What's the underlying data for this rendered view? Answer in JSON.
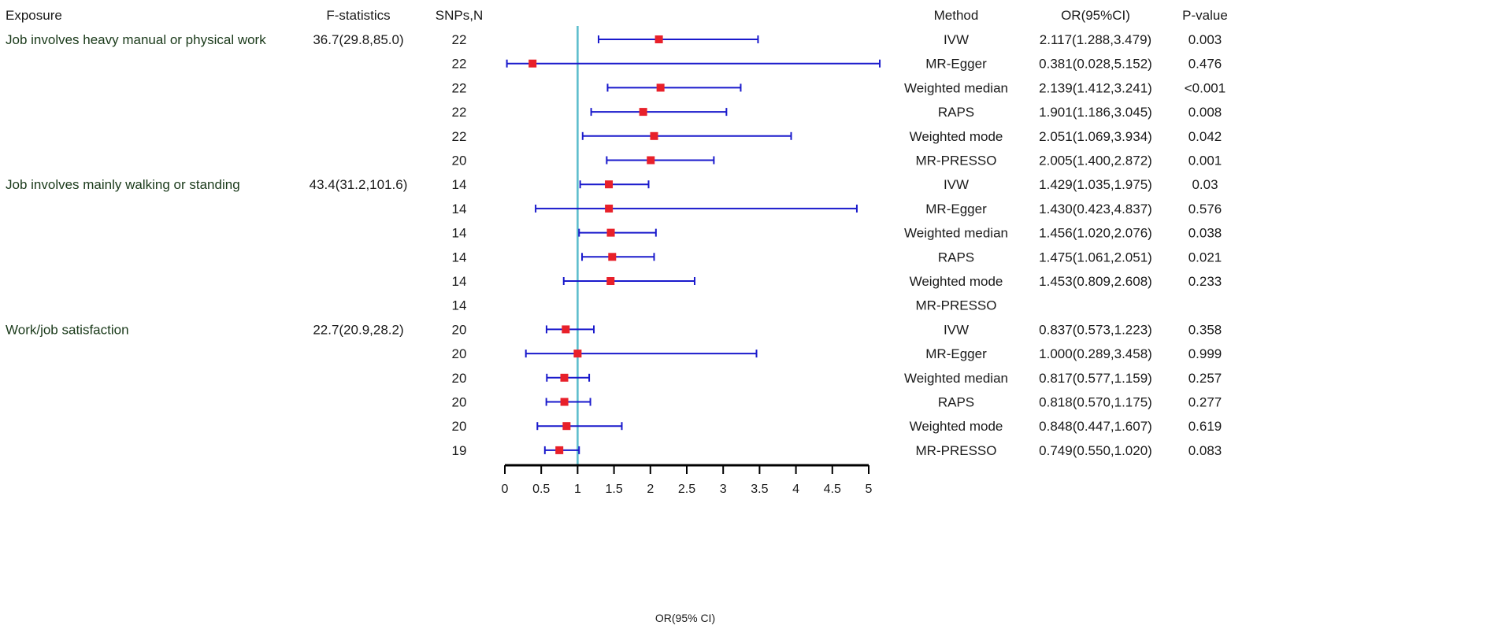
{
  "chart_data": {
    "type": "forest",
    "headers": {
      "exposure": "Exposure",
      "fstat": "F-statistics",
      "snps": "SNPs,N",
      "method": "Method",
      "or": "OR(95%CI)",
      "p": "P-value"
    },
    "xlabel": "OR(95% CI)",
    "xlim": [
      0,
      5
    ],
    "x_ticks": [
      0,
      0.5,
      1,
      1.5,
      2,
      2.5,
      3,
      3.5,
      4,
      4.5,
      5
    ],
    "x_tick_labels": [
      "0",
      "0.5",
      "1",
      "1.5",
      "2",
      "2.5",
      "3",
      "3.5",
      "4",
      "4.5",
      "5"
    ],
    "reference_line": 1,
    "colors": {
      "ci": "#1a1acc",
      "point": "#e8202a",
      "reference": "#5bbccc",
      "axis": "#000000"
    },
    "rows": [
      {
        "exposure": "Job involves heavy manual or physical work",
        "fstat": "36.7(29.8,85.0)",
        "snps": "22",
        "method": "IVW",
        "or": 2.117,
        "lo": 1.288,
        "hi": 3.479,
        "or_text": "2.117(1.288,3.479)",
        "p": "0.003"
      },
      {
        "exposure": "",
        "fstat": "",
        "snps": "22",
        "method": "MR-Egger",
        "or": 0.381,
        "lo": 0.028,
        "hi": 5.152,
        "or_text": "0.381(0.028,5.152)",
        "p": "0.476"
      },
      {
        "exposure": "",
        "fstat": "",
        "snps": "22",
        "method": "Weighted median",
        "or": 2.139,
        "lo": 1.412,
        "hi": 3.241,
        "or_text": "2.139(1.412,3.241)",
        "p": "<0.001"
      },
      {
        "exposure": "",
        "fstat": "",
        "snps": "22",
        "method": "RAPS",
        "or": 1.901,
        "lo": 1.186,
        "hi": 3.045,
        "or_text": "1.901(1.186,3.045)",
        "p": "0.008"
      },
      {
        "exposure": "",
        "fstat": "",
        "snps": "22",
        "method": "Weighted mode",
        "or": 2.051,
        "lo": 1.069,
        "hi": 3.934,
        "or_text": "2.051(1.069,3.934)",
        "p": "0.042"
      },
      {
        "exposure": "",
        "fstat": "",
        "snps": "20",
        "method": "MR-PRESSO",
        "or": 2.005,
        "lo": 1.4,
        "hi": 2.872,
        "or_text": "2.005(1.400,2.872)",
        "p": "0.001"
      },
      {
        "exposure": "Job involves mainly walking or standing",
        "fstat": "43.4(31.2,101.6)",
        "snps": "14",
        "method": "IVW",
        "or": 1.429,
        "lo": 1.035,
        "hi": 1.975,
        "or_text": "1.429(1.035,1.975)",
        "p": "0.03"
      },
      {
        "exposure": "",
        "fstat": "",
        "snps": "14",
        "method": "MR-Egger",
        "or": 1.43,
        "lo": 0.423,
        "hi": 4.837,
        "or_text": "1.430(0.423,4.837)",
        "p": "0.576"
      },
      {
        "exposure": "",
        "fstat": "",
        "snps": "14",
        "method": "Weighted median",
        "or": 1.456,
        "lo": 1.02,
        "hi": 2.076,
        "or_text": "1.456(1.020,2.076)",
        "p": "0.038"
      },
      {
        "exposure": "",
        "fstat": "",
        "snps": "14",
        "method": "RAPS",
        "or": 1.475,
        "lo": 1.061,
        "hi": 2.051,
        "or_text": "1.475(1.061,2.051)",
        "p": "0.021"
      },
      {
        "exposure": "",
        "fstat": "",
        "snps": "14",
        "method": "Weighted mode",
        "or": 1.453,
        "lo": 0.809,
        "hi": 2.608,
        "or_text": "1.453(0.809,2.608)",
        "p": "0.233"
      },
      {
        "exposure": "",
        "fstat": "",
        "snps": "14",
        "method": "MR-PRESSO",
        "or": null,
        "lo": null,
        "hi": null,
        "or_text": "",
        "p": ""
      },
      {
        "exposure": "Work/job satisfaction",
        "fstat": "22.7(20.9,28.2)",
        "snps": "20",
        "method": "IVW",
        "or": 0.837,
        "lo": 0.573,
        "hi": 1.223,
        "or_text": "0.837(0.573,1.223)",
        "p": "0.358"
      },
      {
        "exposure": "",
        "fstat": "",
        "snps": "20",
        "method": "MR-Egger",
        "or": 1.0,
        "lo": 0.289,
        "hi": 3.458,
        "or_text": "1.000(0.289,3.458)",
        "p": "0.999"
      },
      {
        "exposure": "",
        "fstat": "",
        "snps": "20",
        "method": "Weighted median",
        "or": 0.817,
        "lo": 0.577,
        "hi": 1.159,
        "or_text": "0.817(0.577,1.159)",
        "p": "0.257"
      },
      {
        "exposure": "",
        "fstat": "",
        "snps": "20",
        "method": "RAPS",
        "or": 0.818,
        "lo": 0.57,
        "hi": 1.175,
        "or_text": "0.818(0.570,1.175)",
        "p": "0.277"
      },
      {
        "exposure": "",
        "fstat": "",
        "snps": "20",
        "method": "Weighted mode",
        "or": 0.848,
        "lo": 0.447,
        "hi": 1.607,
        "or_text": "0.848(0.447,1.607)",
        "p": "0.619"
      },
      {
        "exposure": "",
        "fstat": "",
        "snps": "19",
        "method": "MR-PRESSO",
        "or": 0.749,
        "lo": 0.55,
        "hi": 1.02,
        "or_text": "0.749(0.550,1.020)",
        "p": "0.083"
      }
    ]
  }
}
